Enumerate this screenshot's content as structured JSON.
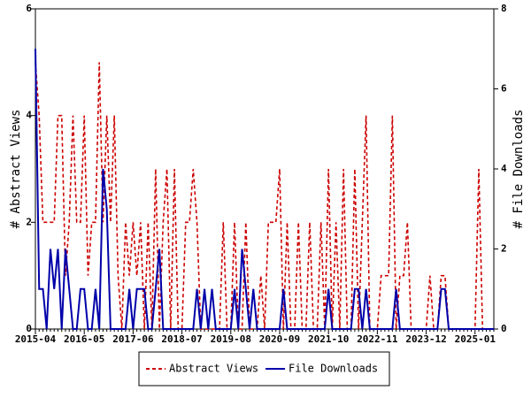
{
  "chart_data": {
    "type": "line",
    "y_label": "# Abstract Views",
    "y2_label": "# File Downloads",
    "categories": [
      "2015-04",
      null,
      null,
      null,
      null,
      null,
      null,
      null,
      null,
      null,
      null,
      null,
      null,
      "2016-05",
      null,
      null,
      null,
      null,
      null,
      null,
      null,
      null,
      null,
      null,
      null,
      null,
      "2017-06",
      null,
      null,
      null,
      null,
      null,
      null,
      null,
      null,
      null,
      null,
      null,
      null,
      "2018-07",
      null,
      null,
      null,
      null,
      null,
      null,
      null,
      null,
      null,
      null,
      null,
      null,
      "2019-08",
      null,
      null,
      null,
      null,
      null,
      null,
      null,
      null,
      null,
      null,
      null,
      null,
      "2020-09",
      null,
      null,
      null,
      null,
      null,
      null,
      null,
      null,
      null,
      null,
      null,
      null,
      "2021-10",
      null,
      null,
      null,
      null,
      null,
      null,
      null,
      null,
      null,
      null,
      null,
      null,
      "2022-11",
      null,
      null,
      null,
      null,
      null,
      null,
      null,
      null,
      null,
      null,
      null,
      null,
      "2023-12",
      null,
      null,
      null,
      null,
      null,
      null,
      null,
      null,
      null,
      null,
      null,
      null,
      "2025-01",
      null,
      null,
      null,
      null,
      null
    ],
    "series": [
      {
        "name": "Abstract Views",
        "color": "#cc0000",
        "dashed": true,
        "axis": "y",
        "values": [
          5,
          4,
          2,
          2,
          2,
          2,
          4,
          4,
          1,
          2,
          4,
          2,
          2,
          4,
          1,
          2,
          2,
          5,
          2,
          4,
          2,
          4,
          1,
          0,
          2,
          1,
          2,
          1,
          2,
          0,
          2,
          0,
          3,
          0,
          2,
          3,
          0,
          3,
          0,
          0,
          2,
          2,
          3,
          2,
          0,
          0,
          0,
          0,
          0,
          0,
          2,
          0,
          0,
          2,
          0,
          0,
          2,
          0,
          0,
          0,
          1,
          0,
          2,
          2,
          2,
          3,
          0,
          2,
          0,
          0,
          2,
          0,
          0,
          2,
          0,
          0,
          2,
          0,
          3,
          0,
          2,
          0,
          3,
          0,
          0,
          3,
          0,
          2,
          4,
          0,
          0,
          0,
          1,
          1,
          1,
          4,
          0,
          1,
          1,
          2,
          0,
          0,
          0,
          0,
          0,
          1,
          0,
          0,
          1,
          1,
          0,
          0,
          0,
          0,
          0,
          0,
          0,
          0,
          3,
          0,
          0,
          0,
          0
        ]
      },
      {
        "name": "File Downloads",
        "color": "#0000aa",
        "dashed": false,
        "axis": "y2",
        "values": [
          7,
          1,
          1,
          0,
          2,
          1,
          2,
          0,
          2,
          1,
          0,
          0,
          1,
          1,
          0,
          0,
          1,
          0,
          4,
          3,
          0,
          0,
          0,
          0,
          0,
          1,
          0,
          1,
          1,
          1,
          0,
          0,
          1,
          2,
          0,
          0,
          0,
          0,
          0,
          0,
          0,
          0,
          0,
          1,
          0,
          1,
          0,
          1,
          0,
          0,
          0,
          0,
          0,
          1,
          0,
          2,
          1,
          0,
          1,
          0,
          0,
          0,
          0,
          0,
          0,
          0,
          1,
          0,
          0,
          0,
          0,
          0,
          0,
          0,
          0,
          0,
          0,
          0,
          1,
          0,
          0,
          0,
          0,
          0,
          0,
          1,
          1,
          0,
          1,
          0,
          0,
          0,
          0,
          0,
          0,
          0,
          1,
          0,
          0,
          0,
          0,
          0,
          0,
          0,
          0,
          0,
          0,
          0,
          1,
          1,
          0,
          0,
          0,
          0,
          0,
          0,
          0,
          0,
          0,
          0,
          0,
          0,
          0
        ]
      }
    ],
    "ylim": [
      0,
      6
    ],
    "yticks": [
      0,
      2,
      4,
      6
    ],
    "y2lim": [
      0,
      8
    ],
    "y2ticks": [
      0,
      2,
      4,
      6,
      8
    ],
    "legend": "bottom"
  }
}
